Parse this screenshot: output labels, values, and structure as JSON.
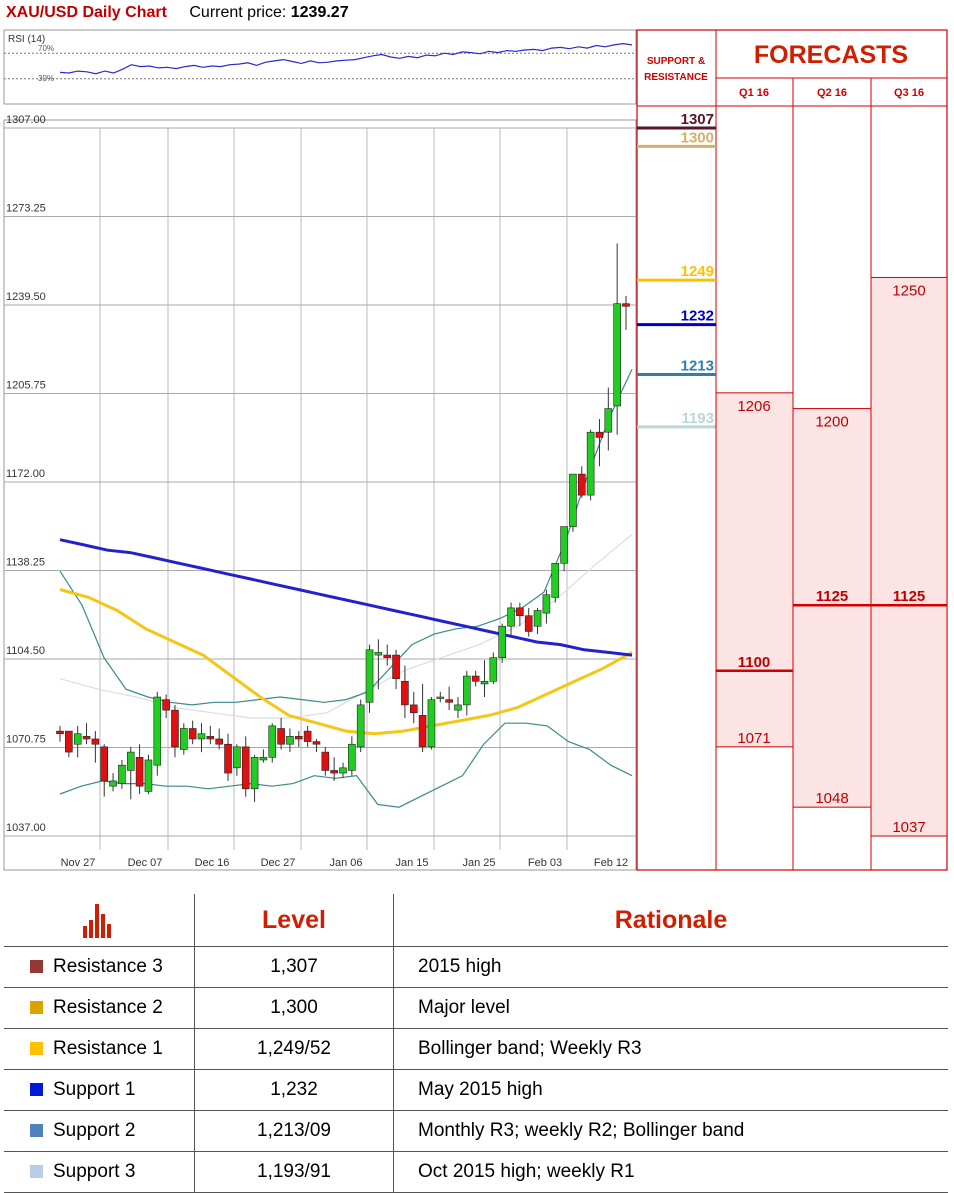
{
  "header": {
    "title": "XAU/USD Daily Chart",
    "price_label": "Current price:",
    "price": "1239.27"
  },
  "chart_data": [
    {
      "type": "candlestick",
      "title": "XAU/USD Daily Chart",
      "y_ticks": [
        "1307.00",
        "1273.25",
        "1239.50",
        "1205.75",
        "1172.00",
        "1138.25",
        "1104.50",
        "1070.75",
        "1037.00"
      ],
      "ylim": [
        1037,
        1307
      ],
      "x_ticks": [
        "Nov 27",
        "Dec 07",
        "Dec 16",
        "Dec 27",
        "Jan 06",
        "Jan 15",
        "Jan 25",
        "Feb 03",
        "Feb 12"
      ],
      "candles": [
        [
          1077,
          1079,
          1073,
          1076
        ],
        [
          1077,
          1075,
          1067,
          1069
        ],
        [
          1072,
          1079,
          1067,
          1076
        ],
        [
          1075,
          1080,
          1072,
          1074
        ],
        [
          1074,
          1077,
          1065,
          1072
        ],
        [
          1071,
          1072,
          1052,
          1058
        ],
        [
          1056,
          1061,
          1054,
          1058
        ],
        [
          1057,
          1066,
          1055,
          1064
        ],
        [
          1062,
          1071,
          1051,
          1069
        ],
        [
          1067,
          1072,
          1053,
          1056
        ],
        [
          1054,
          1068,
          1053,
          1066
        ],
        [
          1064,
          1092,
          1060,
          1090
        ],
        [
          1089,
          1091,
          1082,
          1085
        ],
        [
          1085,
          1087,
          1067,
          1071
        ],
        [
          1070,
          1080,
          1068,
          1078
        ],
        [
          1078,
          1081,
          1072,
          1074
        ],
        [
          1074,
          1080,
          1069,
          1076
        ],
        [
          1075,
          1079,
          1072,
          1074
        ],
        [
          1074,
          1078,
          1070,
          1072
        ],
        [
          1072,
          1076,
          1058,
          1061
        ],
        [
          1063,
          1072,
          1060,
          1071
        ],
        [
          1071,
          1075,
          1052,
          1055
        ],
        [
          1055,
          1068,
          1050,
          1067
        ],
        [
          1066,
          1070,
          1065,
          1067
        ],
        [
          1067,
          1080,
          1065,
          1079
        ],
        [
          1078,
          1082,
          1070,
          1072
        ],
        [
          1072,
          1078,
          1069,
          1075
        ],
        [
          1075,
          1077,
          1071,
          1074
        ],
        [
          1077,
          1079,
          1071,
          1073
        ],
        [
          1073,
          1074,
          1069,
          1072
        ],
        [
          1069,
          1071,
          1060,
          1062
        ],
        [
          1062,
          1067,
          1058,
          1061
        ],
        [
          1061,
          1065,
          1059,
          1063
        ],
        [
          1062,
          1075,
          1060,
          1072
        ],
        [
          1071,
          1089,
          1069,
          1087
        ],
        [
          1088,
          1110,
          1084,
          1108
        ],
        [
          1106,
          1112,
          1093,
          1107
        ],
        [
          1106,
          1110,
          1102,
          1105
        ],
        [
          1106,
          1108,
          1093,
          1097
        ],
        [
          1096,
          1102,
          1082,
          1087
        ],
        [
          1087,
          1092,
          1080,
          1084
        ],
        [
          1083,
          1095,
          1069,
          1071
        ],
        [
          1071,
          1090,
          1070,
          1089
        ],
        [
          1090,
          1092,
          1088,
          1090
        ],
        [
          1089,
          1094,
          1085,
          1088
        ],
        [
          1085,
          1090,
          1082,
          1087
        ],
        [
          1087,
          1100,
          1083,
          1098
        ],
        [
          1098,
          1100,
          1094,
          1096
        ],
        [
          1095,
          1104,
          1090,
          1096
        ],
        [
          1096,
          1107,
          1095,
          1105
        ],
        [
          1105,
          1118,
          1103,
          1117
        ],
        [
          1117,
          1126,
          1113,
          1124
        ],
        [
          1124,
          1126,
          1117,
          1121
        ],
        [
          1121,
          1124,
          1113,
          1115
        ],
        [
          1117,
          1124,
          1114,
          1123
        ],
        [
          1122,
          1131,
          1118,
          1129
        ],
        [
          1128,
          1140,
          1126,
          1141
        ],
        [
          1141,
          1155,
          1138,
          1155
        ],
        [
          1155,
          1175,
          1153,
          1175
        ],
        [
          1175,
          1178,
          1166,
          1167
        ],
        [
          1167,
          1192,
          1165,
          1191
        ],
        [
          1191,
          1196,
          1178,
          1189
        ],
        [
          1191,
          1208,
          1184,
          1200
        ],
        [
          1201,
          1263,
          1190,
          1240
        ],
        [
          1240,
          1243,
          1230,
          1239
        ]
      ],
      "ma_200": [
        1150,
        1148,
        1146,
        1145,
        1143,
        1141,
        1139,
        1137,
        1135,
        1133,
        1131,
        1129,
        1127,
        1125,
        1123,
        1121,
        1119,
        1117,
        1115,
        1113,
        1111,
        1110,
        1108,
        1107,
        1106
      ],
      "ma_50": [
        1131,
        1128,
        1123,
        1116,
        1111,
        1106,
        1098,
        1090,
        1083,
        1080,
        1077,
        1076,
        1077,
        1079,
        1081,
        1083,
        1086,
        1091,
        1096,
        1101,
        1107
      ],
      "bb_upper": [
        1138,
        1125,
        1105,
        1093,
        1090,
        1088,
        1087,
        1088,
        1088,
        1089,
        1090,
        1089,
        1088,
        1089,
        1092,
        1101,
        1110,
        1114,
        1116,
        1117,
        1120,
        1124,
        1130,
        1150,
        1175,
        1197,
        1215
      ],
      "bb_lower": [
        1053,
        1056,
        1058,
        1057,
        1057,
        1056,
        1056,
        1055,
        1056,
        1057,
        1056,
        1057,
        1060,
        1059,
        1060,
        1049,
        1048,
        1052,
        1056,
        1060,
        1072,
        1080,
        1080,
        1079,
        1073,
        1070,
        1064,
        1060
      ],
      "bb_mid_faint": [
        1097,
        1093,
        1090,
        1086,
        1084,
        1082,
        1082,
        1084,
        1092,
        1100,
        1105,
        1110,
        1117,
        1127,
        1140,
        1152
      ]
    },
    {
      "type": "line",
      "title": "RSI (14)",
      "y_ticks": [
        "70%",
        "30%"
      ],
      "ylim": [
        0,
        100
      ],
      "values": [
        40,
        39,
        42,
        41,
        38,
        42,
        39,
        45,
        52,
        49,
        50,
        47,
        48,
        46,
        49,
        51,
        48,
        50,
        49,
        52,
        53,
        55,
        51,
        56,
        58,
        60,
        57,
        54,
        58,
        55,
        56,
        58,
        59,
        60,
        63,
        66,
        68,
        64,
        62,
        65,
        63,
        67,
        66,
        70,
        68,
        72,
        71,
        69,
        73,
        71,
        74,
        73,
        75,
        76,
        74,
        78,
        79,
        77,
        80,
        78,
        82,
        80,
        83,
        85,
        83
      ]
    },
    {
      "type": "table",
      "title": "FORECASTS",
      "support_resistance_header": "SUPPORT & RESISTANCE",
      "columns": [
        "Q1 16",
        "Q2 16",
        "Q3 16"
      ],
      "sr_levels": [
        {
          "label": "1307",
          "value": 1307,
          "color": "#5b1328"
        },
        {
          "label": "1300",
          "value": 1300,
          "color": "#d4b06a"
        },
        {
          "label": "1249",
          "value": 1249,
          "color": "#ffc000"
        },
        {
          "label": "1232",
          "value": 1232,
          "color": "#0000c8"
        },
        {
          "label": "1213",
          "value": 1213,
          "color": "#2f7fa8"
        },
        {
          "label": "1193",
          "value": 1193,
          "color": "#b8d8d8"
        }
      ],
      "forecast_ranges": [
        {
          "high": 1206,
          "high_label": "1206",
          "mid": 1100,
          "mid_label": "1100",
          "low": 1071,
          "low_label": "1071"
        },
        {
          "high": 1200,
          "high_label": "1200",
          "mid": 1125,
          "mid_label": "1125",
          "low": 1048,
          "low_label": "1048"
        },
        {
          "high": 1250,
          "high_label": "1250",
          "mid": 1125,
          "mid_label": "1125",
          "low": 1037,
          "low_label": "1037"
        }
      ]
    }
  ],
  "levels_table": {
    "header_level": "Level",
    "header_rationale": "Rationale",
    "rows": [
      {
        "name": "Resistance 3",
        "level": "1,307",
        "rationale": "2015 high",
        "color": "#953735"
      },
      {
        "name": "Resistance 2",
        "level": "1,300",
        "rationale": "Major level",
        "color": "#d9a300"
      },
      {
        "name": "Resistance 1",
        "level": "1,249/52",
        "rationale": "Bollinger band; Weekly R3",
        "color": "#ffc000"
      },
      {
        "name": "Support 1",
        "level": "1,232",
        "rationale": "May 2015 high",
        "color": "#0018d8"
      },
      {
        "name": "Support 2",
        "level": "1,213/09",
        "rationale": "Monthly R3; weekly R2; Bollinger band",
        "color": "#4f81bd"
      },
      {
        "name": "Support 3",
        "level": "1,193/91",
        "rationale": "Oct 2015 high; weekly R1",
        "color": "#b9cde5"
      }
    ]
  }
}
